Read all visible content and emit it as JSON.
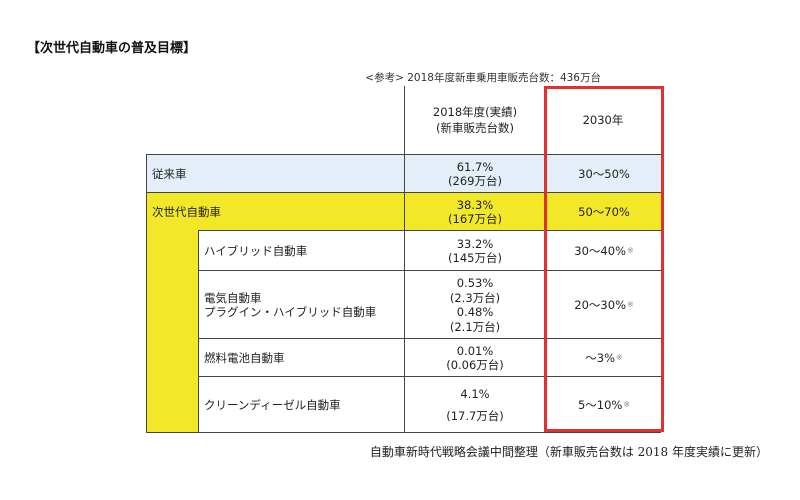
{
  "title": "【次世代自動車の普及目標】",
  "reference_note": "<参考> 2018年度新車乗用車販売台数：436万台",
  "headers": {
    "col_2018": [
      "2018年度(実績)",
      "(新車販売台数)"
    ],
    "col_2030": "2030年"
  },
  "rows": [
    {
      "label": "従来車",
      "value_lines": [
        "61.7%",
        "(269万台)"
      ],
      "target": "30〜50%",
      "mark": ""
    },
    {
      "label": "次世代自動車",
      "value_lines": [
        "38.3%",
        "(167万台)"
      ],
      "target": "50〜70%",
      "mark": ""
    },
    {
      "label": "ハイブリッド自動車",
      "value_lines": [
        "33.2%",
        "(145万台)"
      ],
      "target": "30〜40%",
      "mark": "※"
    },
    {
      "label_lines": [
        "電気自動車",
        "プラグイン・ハイブリッド自動車"
      ],
      "value_lines": [
        "0.53%",
        "(2.3万台)",
        "0.48%",
        "(2.1万台)"
      ],
      "target": "20〜30%",
      "mark": "※"
    },
    {
      "label": "燃料電池自動車",
      "value_lines": [
        "0.01%",
        "(0.06万台)"
      ],
      "target": "〜3%",
      "mark": "※"
    },
    {
      "label": "クリーンディーゼル自動車",
      "value_lines": [
        "4.1%",
        "(17.7万台)"
      ],
      "target": "5〜10%",
      "mark": "※"
    }
  ],
  "source": "自動車新時代戦略会議中間整理（新車販売台数は 2018 年度実績に更新）",
  "colors": {
    "highlight_yellow": "#f3e828",
    "conventional_blue": "#e4eef8",
    "target_box_red": "#e03131"
  }
}
